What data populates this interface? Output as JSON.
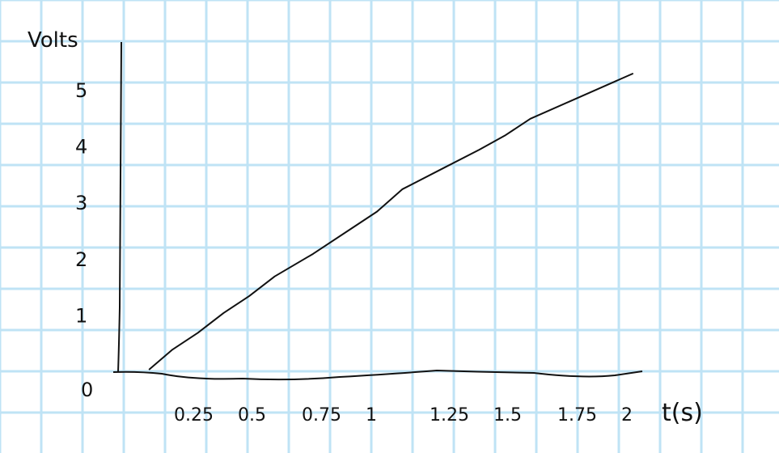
{
  "colors": {
    "paper": "#ffffff",
    "grid": "#bfe3f5",
    "ink": "#111111"
  },
  "chart_data": {
    "type": "line",
    "title": "",
    "xlabel": "t(s)",
    "ylabel": "Volts",
    "xlim": [
      0,
      2.1
    ],
    "ylim": [
      0,
      5.6
    ],
    "grid": true,
    "x_ticks": [
      {
        "value": 0.25,
        "label": "0.25"
      },
      {
        "value": 0.5,
        "label": "0.5"
      },
      {
        "value": 0.75,
        "label": "0.75"
      },
      {
        "value": 1.0,
        "label": "1"
      },
      {
        "value": 1.25,
        "label": "1.25"
      },
      {
        "value": 1.5,
        "label": "1.5"
      },
      {
        "value": 1.75,
        "label": "1.75"
      },
      {
        "value": 2.0,
        "label": "2"
      }
    ],
    "y_ticks": [
      {
        "value": 0,
        "label": "0"
      },
      {
        "value": 1,
        "label": "1"
      },
      {
        "value": 2,
        "label": "2"
      },
      {
        "value": 3,
        "label": "3"
      },
      {
        "value": 4,
        "label": "4"
      },
      {
        "value": 5,
        "label": "5"
      }
    ],
    "series": [
      {
        "x": [
          0.11,
          0.2,
          0.3,
          0.4,
          0.5,
          0.6,
          0.75,
          0.9,
          1.0,
          1.1,
          1.25,
          1.4,
          1.5,
          1.6,
          1.75,
          1.9,
          2.0
        ],
        "y": [
          0.05,
          0.4,
          0.7,
          1.05,
          1.35,
          1.7,
          2.1,
          2.55,
          2.85,
          3.25,
          3.6,
          3.95,
          4.2,
          4.5,
          4.8,
          5.1,
          5.3
        ]
      }
    ]
  }
}
